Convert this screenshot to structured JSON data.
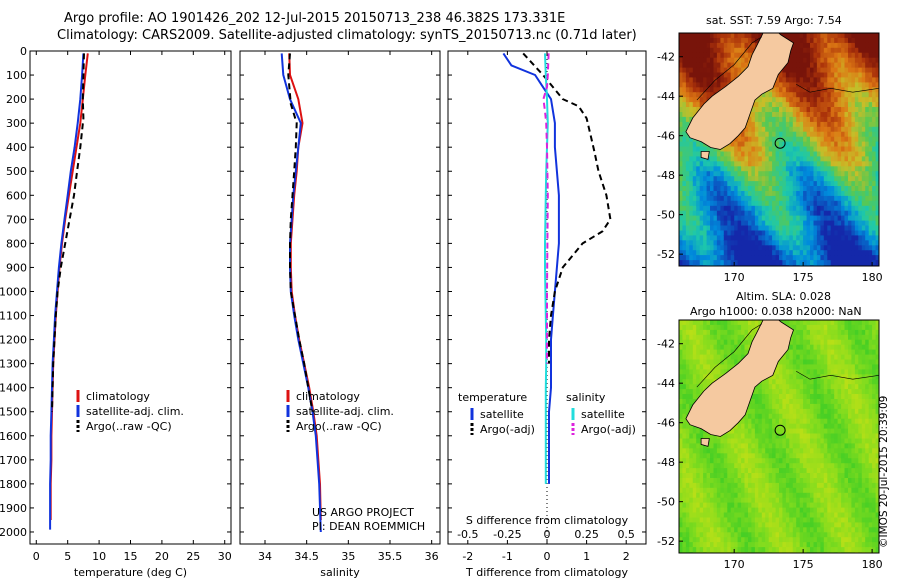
{
  "title": {
    "line1": "Argo profile: AO 1901426_202 12-Jul-2015 20150713_238 46.382S 173.331E",
    "line2": "Climatology: CARS2009. Satellite-adjusted climatology: synTS_20150713.nc (0.71d later)"
  },
  "credit_lines": [
    "US ARGO PROJECT",
    "PI: DEAN ROEMMICH"
  ],
  "stamp": "©IMOS 20-Jul-2015 20:39:09",
  "colors": {
    "climatology": "#dd1111",
    "satellite": "#1133dd",
    "argo": "#000000",
    "sat_salinity": "#22dddd",
    "argo_salinity": "#dd22dd"
  },
  "chart_data": [
    {
      "type": "line",
      "name": "temperature profile",
      "xlabel": "temperature (deg C)",
      "ylabel": "",
      "xlim": [
        -1,
        31
      ],
      "ylim": [
        2050,
        0
      ],
      "xticks": [
        0,
        5,
        10,
        15,
        20,
        25,
        30
      ],
      "yticks": [
        0,
        100,
        200,
        300,
        400,
        500,
        600,
        700,
        800,
        900,
        1000,
        1100,
        1200,
        1300,
        1400,
        1500,
        1600,
        1700,
        1800,
        1900,
        2000
      ],
      "legend": {
        "items": [
          "climatology",
          "satellite-adj. clim.",
          "Argo(..raw -QC)"
        ],
        "placement": "lower-center"
      },
      "series": [
        {
          "name": "climatology",
          "color": "#dd1111",
          "style": "solid",
          "x": [
            8.2,
            7.8,
            7.4,
            7.0,
            6.4,
            5.8,
            5.2,
            4.6,
            4.1,
            3.7,
            3.4,
            3.1,
            2.9,
            2.7,
            2.6,
            2.5,
            2.4,
            2.4,
            2.3,
            2.3
          ],
          "y": [
            10,
            100,
            200,
            300,
            400,
            500,
            600,
            700,
            800,
            900,
            1000,
            1100,
            1200,
            1300,
            1400,
            1500,
            1600,
            1700,
            1800,
            1950
          ]
        },
        {
          "name": "satellite-adj. clim.",
          "color": "#1133dd",
          "style": "solid",
          "x": [
            7.5,
            7.3,
            7.0,
            6.6,
            6.1,
            5.5,
            5.0,
            4.5,
            4.0,
            3.6,
            3.3,
            3.0,
            2.8,
            2.6,
            2.5,
            2.4,
            2.3,
            2.3,
            2.2,
            2.2
          ],
          "y": [
            10,
            100,
            200,
            300,
            400,
            500,
            600,
            700,
            800,
            900,
            1000,
            1100,
            1200,
            1300,
            1400,
            1500,
            1600,
            1700,
            1800,
            1990
          ]
        },
        {
          "name": "Argo(..raw -QC)",
          "color": "#000000",
          "style": "dashed",
          "x": [
            7.6,
            7.5,
            7.4,
            7.5,
            7.0,
            6.5,
            6.0,
            5.3,
            4.6,
            3.9,
            3.4,
            3.1,
            2.9,
            2.7,
            2.6,
            2.5
          ],
          "y": [
            10,
            100,
            200,
            280,
            400,
            500,
            600,
            700,
            800,
            900,
            1000,
            1100,
            1200,
            1300,
            1400,
            1500
          ]
        }
      ]
    },
    {
      "type": "line",
      "name": "salinity profile",
      "xlabel": "salinity",
      "xlim": [
        33.7,
        36.1
      ],
      "ylim": [
        2050,
        0
      ],
      "xticks": [
        34,
        34.5,
        35,
        35.5,
        36
      ],
      "credits_placement": "bottom-right",
      "legend": {
        "items": [
          "climatology",
          "satellite-adj. clim.",
          "Argo(..raw -QC)"
        ],
        "placement": "lower-center"
      },
      "series": [
        {
          "name": "climatology",
          "color": "#dd1111",
          "style": "solid",
          "x": [
            34.29,
            34.3,
            34.4,
            34.45,
            34.4,
            34.38,
            34.35,
            34.33,
            34.31,
            34.31,
            34.32,
            34.36,
            34.41,
            34.47,
            34.53,
            34.58,
            34.62,
            34.64,
            34.66,
            34.67
          ],
          "y": [
            10,
            100,
            200,
            300,
            400,
            500,
            600,
            700,
            800,
            900,
            1000,
            1100,
            1200,
            1300,
            1400,
            1500,
            1600,
            1700,
            1800,
            1950
          ]
        },
        {
          "name": "satellite-adj. clim.",
          "color": "#1133dd",
          "style": "solid",
          "x": [
            34.2,
            34.22,
            34.3,
            34.43,
            34.4,
            34.37,
            34.34,
            34.32,
            34.3,
            34.3,
            34.31,
            34.35,
            34.4,
            34.46,
            34.52,
            34.57,
            34.61,
            34.63,
            34.65,
            34.66,
            34.67
          ],
          "y": [
            10,
            100,
            200,
            300,
            400,
            500,
            600,
            700,
            800,
            900,
            1000,
            1100,
            1200,
            1300,
            1400,
            1500,
            1600,
            1700,
            1800,
            1900,
            2000
          ]
        },
        {
          "name": "Argo(..raw -QC)",
          "color": "#000000",
          "style": "dashed",
          "x": [
            34.3,
            34.28,
            34.31,
            34.38,
            34.37,
            34.35,
            34.33,
            34.31,
            34.3,
            34.3,
            34.31,
            34.36,
            34.41,
            34.47,
            34.52,
            34.57
          ],
          "y": [
            10,
            100,
            220,
            300,
            400,
            500,
            600,
            700,
            800,
            900,
            1000,
            1100,
            1200,
            1300,
            1400,
            1500
          ]
        }
      ]
    },
    {
      "type": "line",
      "name": "difference profile",
      "xlabel": "T difference from climatology",
      "xlabel_top": "S difference from climatology",
      "xlim": [
        -2.5,
        2.5
      ],
      "ylim": [
        2050,
        0
      ],
      "xticks": [
        -2,
        -1,
        0,
        1,
        2
      ],
      "xticks_top": [
        "-0.5",
        "-0.25",
        "0",
        "0.25",
        "0.5"
      ],
      "legend": {
        "col1_header": "temperature",
        "col2_header": "salinity",
        "items": [
          "satellite",
          "Argo(-adj)",
          "satellite",
          "Argo(-adj)"
        ],
        "placement": "lower-center"
      },
      "series": [
        {
          "name": "temperature satellite",
          "color": "#1133dd",
          "style": "solid",
          "x": [
            -1.1,
            -0.9,
            -0.3,
            -0.1,
            0.1,
            0.2,
            0.2,
            0.25,
            0.3,
            0.3,
            0.3,
            0.25,
            0.2,
            0.15,
            0.1,
            0.1,
            0.1,
            0.05,
            0.05,
            0.05
          ],
          "y": [
            10,
            60,
            100,
            150,
            200,
            300,
            400,
            500,
            600,
            700,
            800,
            900,
            1000,
            1100,
            1200,
            1300,
            1400,
            1500,
            1600,
            1800
          ]
        },
        {
          "name": "temperature Argo(-adj)",
          "color": "#000000",
          "style": "dashed",
          "x": [
            -0.6,
            -0.1,
            0.4,
            0.8,
            1.0,
            1.1,
            1.2,
            1.3,
            1.5,
            1.6,
            1.4,
            0.9,
            0.4,
            0.2,
            0.1,
            0.05,
            0.05
          ],
          "y": [
            10,
            100,
            200,
            230,
            280,
            350,
            420,
            500,
            600,
            700,
            750,
            800,
            900,
            1000,
            1100,
            1200,
            1300
          ]
        },
        {
          "name": "salinity satellite",
          "color": "#22dddd",
          "style": "solid",
          "x": [
            -0.05,
            -0.03,
            0.0,
            0.02,
            0.0,
            -0.02,
            -0.03,
            -0.04,
            -0.05,
            -0.05,
            -0.04,
            -0.03,
            -0.02,
            -0.02,
            -0.03,
            -0.03,
            -0.03
          ],
          "y": [
            10,
            100,
            200,
            300,
            400,
            500,
            600,
            700,
            800,
            900,
            1000,
            1100,
            1200,
            1300,
            1400,
            1600,
            1800
          ]
        },
        {
          "name": "salinity Argo(-adj)",
          "color": "#dd22dd",
          "style": "dashed",
          "x": [
            0.04,
            0.02,
            0.0,
            -0.09,
            -0.05,
            -0.02,
            0.0,
            0.01,
            0.02,
            0.01,
            0.0,
            0.0,
            0.0
          ],
          "y": [
            10,
            100,
            150,
            200,
            250,
            300,
            400,
            500,
            600,
            800,
            1000,
            1200,
            1300
          ]
        }
      ]
    },
    {
      "type": "heatmap",
      "name": "SST map",
      "title": "sat. SST: 7.59 Argo: 7.54",
      "xlim": [
        166,
        180.5
      ],
      "ylim": [
        -52.6,
        -40.8
      ],
      "xticks": [
        170,
        175,
        180
      ],
      "yticks": [
        -42,
        -44,
        -46,
        -48,
        -50,
        -52
      ],
      "argo_position": {
        "lon": 173.331,
        "lat": -46.382
      }
    },
    {
      "type": "heatmap",
      "name": "SLA map",
      "title_lines": [
        "Altim. SLA: 0.028",
        "Argo h1000: 0.038 h2000: NaN"
      ],
      "xlim": [
        166,
        180.5
      ],
      "ylim": [
        -52.6,
        -40.8
      ],
      "xticks": [
        170,
        175,
        180
      ],
      "yticks": [
        -42,
        -44,
        -46,
        -48,
        -50,
        -52
      ],
      "argo_position": {
        "lon": 173.331,
        "lat": -46.382
      }
    }
  ]
}
